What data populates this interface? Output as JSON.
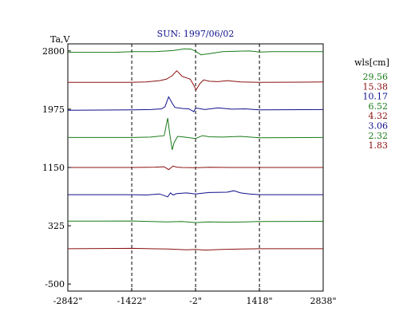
{
  "chart_data": {
    "type": "line",
    "title": "SUN: 1997/06/02",
    "ylabel": "Ta,V",
    "xlabel": "",
    "xlim": [
      -2842,
      2838
    ],
    "ylim": [
      -600,
      2900
    ],
    "x_ticks": [
      {
        "value": -2842,
        "label": "-2842\""
      },
      {
        "value": -1422,
        "label": "-1422\""
      },
      {
        "value": -2,
        "label": "-2\""
      },
      {
        "value": 1418,
        "label": "1418\""
      },
      {
        "value": 2838,
        "label": "2838\""
      }
    ],
    "y_ticks": [
      {
        "value": 2800,
        "label": "2800"
      },
      {
        "value": 1975,
        "label": "1975"
      },
      {
        "value": 1150,
        "label": "1150"
      },
      {
        "value": 325,
        "label": "325"
      },
      {
        "value": -500,
        "label": "-500"
      }
    ],
    "vlines": [
      -1420,
      0,
      1420
    ],
    "grid": false,
    "legend": {
      "placement": "right",
      "title": "wls[cm]",
      "entries": [
        {
          "label": "29.56",
          "color": "#1a7a1a"
        },
        {
          "label": "15.38",
          "color": "#8b1010"
        },
        {
          "label": "10.17",
          "color": "#10108b"
        },
        {
          "label": "6.52",
          "color": "#1a7a1a"
        },
        {
          "label": "4.32",
          "color": "#8b1010"
        },
        {
          "label": "3.06",
          "color": "#10108b"
        },
        {
          "label": "2.32",
          "color": "#1a7a1a"
        },
        {
          "label": "1.83",
          "color": "#8b1010"
        }
      ]
    },
    "series": [
      {
        "name": "29.56",
        "color": "#1a7a1a",
        "x": [
          -2842,
          -1800,
          -1400,
          -900,
          -500,
          -250,
          -100,
          0,
          120,
          300,
          600,
          900,
          1200,
          1418,
          1700,
          2838
        ],
        "y": [
          2780,
          2780,
          2790,
          2790,
          2805,
          2830,
          2825,
          2795,
          2745,
          2760,
          2790,
          2795,
          2800,
          2785,
          2790,
          2790
        ]
      },
      {
        "name": "15.38",
        "color": "#8b1010",
        "x": [
          -2842,
          -1500,
          -1100,
          -800,
          -650,
          -520,
          -420,
          -300,
          -120,
          -50,
          10,
          100,
          180,
          300,
          500,
          700,
          1000,
          1418,
          2838
        ],
        "y": [
          2355,
          2355,
          2360,
          2380,
          2400,
          2450,
          2520,
          2440,
          2400,
          2325,
          2250,
          2340,
          2390,
          2370,
          2365,
          2380,
          2360,
          2355,
          2360
        ]
      },
      {
        "name": "10.17",
        "color": "#10108b",
        "x": [
          -2842,
          -1400,
          -1000,
          -760,
          -680,
          -600,
          -520,
          -460,
          -300,
          -150,
          -40,
          0,
          80,
          200,
          500,
          800,
          1100,
          1418,
          2838
        ],
        "y": [
          1960,
          1965,
          1970,
          1980,
          2010,
          2150,
          2060,
          2000,
          1985,
          1980,
          1940,
          1990,
          1985,
          1970,
          1995,
          1975,
          1980,
          1965,
          1970
        ]
      },
      {
        "name": "6.52",
        "color": "#1a7a1a",
        "x": [
          -2842,
          -1400,
          -1000,
          -700,
          -620,
          -580,
          -520,
          -480,
          -400,
          -250,
          0,
          150,
          300,
          600,
          1000,
          1418,
          2838
        ],
        "y": [
          1575,
          1575,
          1580,
          1600,
          1850,
          1650,
          1400,
          1500,
          1590,
          1580,
          1560,
          1600,
          1585,
          1580,
          1590,
          1570,
          1575
        ]
      },
      {
        "name": "4.32",
        "color": "#8b1010",
        "x": [
          -2842,
          -1400,
          -900,
          -700,
          -600,
          -540,
          -500,
          -420,
          -300,
          0,
          300,
          800,
          1418,
          2838
        ],
        "y": [
          1150,
          1150,
          1155,
          1160,
          1120,
          1150,
          1170,
          1155,
          1150,
          1148,
          1152,
          1150,
          1150,
          1150
        ]
      },
      {
        "name": "3.06",
        "color": "#10108b",
        "x": [
          -2842,
          -1400,
          -1100,
          -800,
          -620,
          -560,
          -500,
          -420,
          -200,
          0,
          150,
          300,
          700,
          850,
          1000,
          1200,
          1418,
          1600,
          2838
        ],
        "y": [
          765,
          765,
          760,
          775,
          735,
          790,
          760,
          780,
          790,
          775,
          785,
          795,
          800,
          820,
          790,
          775,
          765,
          765,
          765
        ]
      },
      {
        "name": "2.32",
        "color": "#1a7a1a",
        "x": [
          -2842,
          -1400,
          -1000,
          -650,
          -300,
          0,
          300,
          700,
          1100,
          1418,
          2838
        ],
        "y": [
          390,
          392,
          385,
          380,
          385,
          370,
          380,
          375,
          380,
          385,
          388
        ]
      },
      {
        "name": "1.83",
        "color": "#8b1010",
        "x": [
          -2842,
          -1400,
          -1000,
          -600,
          -200,
          0,
          200,
          600,
          1000,
          1418,
          2838
        ],
        "y": [
          0,
          5,
          0,
          -5,
          -15,
          -10,
          -20,
          -10,
          -5,
          0,
          0
        ]
      }
    ]
  }
}
